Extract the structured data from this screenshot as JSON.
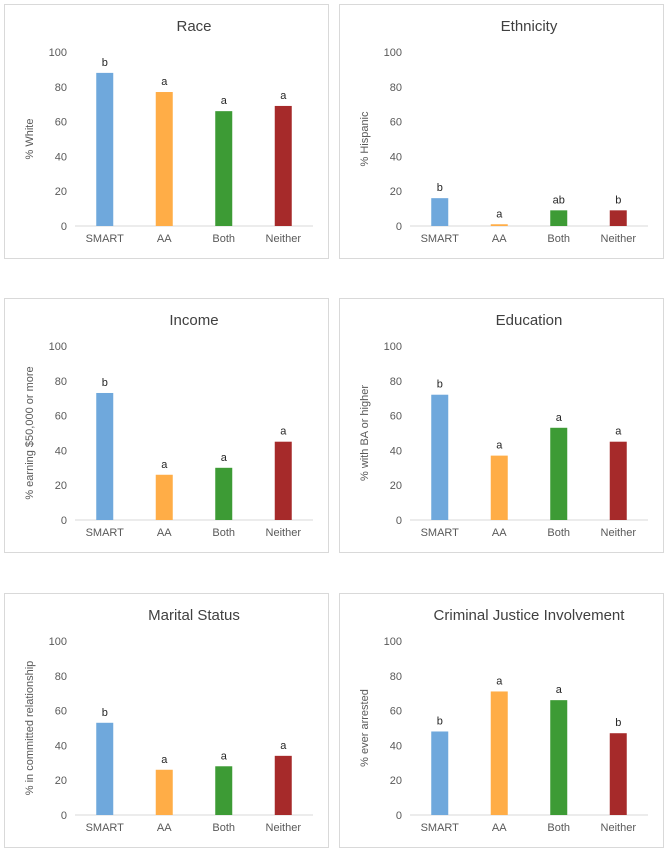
{
  "colors": {
    "SMART": "#6fa8dc",
    "AA": "#ffad47",
    "Both": "#3d9b35",
    "Neither": "#a62a2a",
    "axis": "#d9d9d9"
  },
  "chart_data": [
    {
      "type": "bar",
      "title": "Race",
      "ylabel": "% White",
      "ylim": [
        0,
        100
      ],
      "yticks": [
        0,
        20,
        40,
        60,
        80,
        100
      ],
      "categories": [
        "SMART",
        "AA",
        "Both",
        "Neither"
      ],
      "values": [
        88,
        77,
        66,
        69
      ],
      "labels": [
        "b",
        "a",
        "a",
        "a"
      ]
    },
    {
      "type": "bar",
      "title": "Ethnicity",
      "ylabel": "% Hispanic",
      "ylim": [
        0,
        100
      ],
      "yticks": [
        0,
        20,
        40,
        60,
        80,
        100
      ],
      "categories": [
        "SMART",
        "AA",
        "Both",
        "Neither"
      ],
      "values": [
        16,
        1,
        9,
        9
      ],
      "labels": [
        "b",
        "a",
        "ab",
        "b"
      ]
    },
    {
      "type": "bar",
      "title": "Income",
      "ylabel": "% earning  $50,000 or more",
      "ylim": [
        0,
        100
      ],
      "yticks": [
        0,
        20,
        40,
        60,
        80,
        100
      ],
      "categories": [
        "SMART",
        "AA",
        "Both",
        "Neither"
      ],
      "values": [
        73,
        26,
        30,
        45
      ],
      "labels": [
        "b",
        "a",
        "a",
        "a"
      ]
    },
    {
      "type": "bar",
      "title": "Education",
      "ylabel": "% with BA or higher",
      "ylim": [
        0,
        100
      ],
      "yticks": [
        0,
        20,
        40,
        60,
        80,
        100
      ],
      "categories": [
        "SMART",
        "AA",
        "Both",
        "Neither"
      ],
      "values": [
        72,
        37,
        53,
        45
      ],
      "labels": [
        "b",
        "a",
        "a",
        "a"
      ]
    },
    {
      "type": "bar",
      "title": "Marital Status",
      "ylabel": "% in committed relationship",
      "ylim": [
        0,
        100
      ],
      "yticks": [
        0,
        20,
        40,
        60,
        80,
        100
      ],
      "categories": [
        "SMART",
        "AA",
        "Both",
        "Neither"
      ],
      "values": [
        53,
        26,
        28,
        34
      ],
      "labels": [
        "b",
        "a",
        "a",
        "a"
      ]
    },
    {
      "type": "bar",
      "title": "Criminal Justice Involvement",
      "ylabel": "% ever arrested",
      "ylim": [
        0,
        100
      ],
      "yticks": [
        0,
        20,
        40,
        60,
        80,
        100
      ],
      "categories": [
        "SMART",
        "AA",
        "Both",
        "Neither"
      ],
      "values": [
        48,
        71,
        66,
        47
      ],
      "labels": [
        "b",
        "a",
        "a",
        "b"
      ]
    }
  ]
}
